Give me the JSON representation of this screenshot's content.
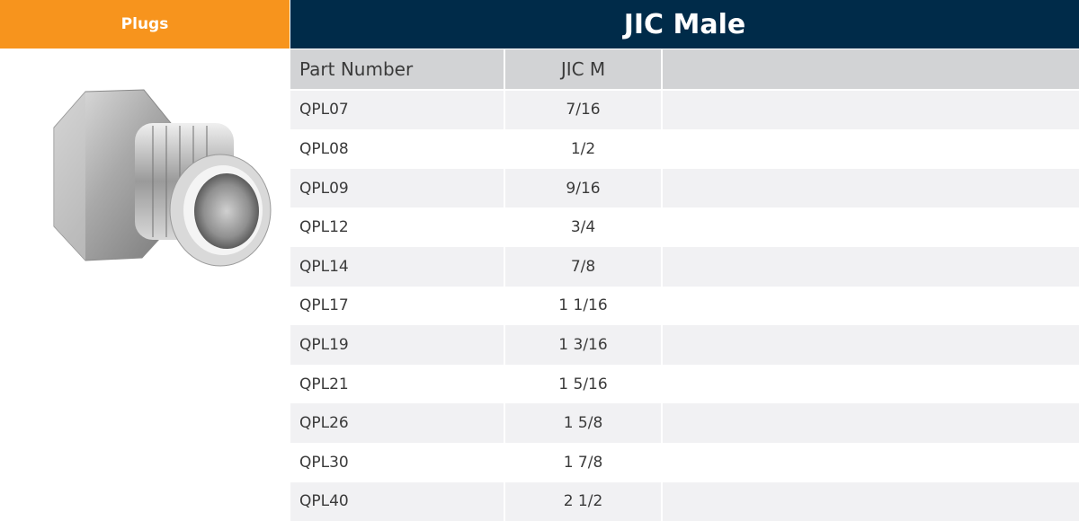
{
  "category_tab": {
    "label": "Plugs"
  },
  "title": "JIC Male",
  "table": {
    "headers": [
      "Part Number",
      "JIC M",
      ""
    ],
    "rows": [
      [
        "QPL07",
        "7/16"
      ],
      [
        "QPL08",
        "1/2"
      ],
      [
        "QPL09",
        "9/16"
      ],
      [
        "QPL12",
        "3/4"
      ],
      [
        "QPL14",
        "7/8"
      ],
      [
        "QPL17",
        "1 1/16"
      ],
      [
        "QPL19",
        "1 3/16"
      ],
      [
        "QPL21",
        "1 5/16"
      ],
      [
        "QPL26",
        "1 5/8"
      ],
      [
        "QPL30",
        "1 7/8"
      ],
      [
        "QPL40",
        "2 1/2"
      ]
    ]
  },
  "colors": {
    "accent": "#f7941d",
    "navy": "#002b49",
    "header_gray": "#d2d3d5",
    "stripe": "#f1f1f3"
  },
  "icons": {
    "product": "jic-male-plug-fitting-image"
  }
}
